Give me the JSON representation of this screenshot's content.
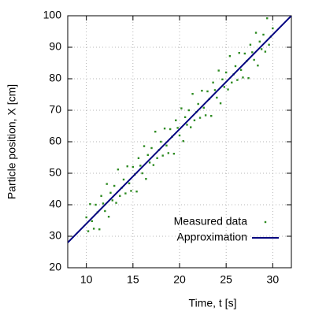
{
  "chart_data": {
    "type": "scatter",
    "xlabel": "Time, t [s]",
    "ylabel": "Particle position, X [cm]",
    "xlim": [
      8,
      32
    ],
    "ylim": [
      20,
      100
    ],
    "xticks": [
      10,
      15,
      20,
      25,
      30
    ],
    "yticks": [
      20,
      30,
      40,
      50,
      60,
      70,
      80,
      90,
      100
    ],
    "grid": true,
    "legend": "bottom-right",
    "series": [
      {
        "name": "Measured data",
        "type": "scatter",
        "color": "#2e8b22",
        "x": [
          10.0,
          10.2,
          10.4,
          10.6,
          10.8,
          11.0,
          11.2,
          11.4,
          11.6,
          11.8,
          12.0,
          12.2,
          12.4,
          12.6,
          12.8,
          13.0,
          13.2,
          13.4,
          13.6,
          13.8,
          14.0,
          14.2,
          14.4,
          14.6,
          14.8,
          15.0,
          15.2,
          15.4,
          15.6,
          15.8,
          16.0,
          16.2,
          16.4,
          16.6,
          16.8,
          17.0,
          17.2,
          17.4,
          17.6,
          17.8,
          18.0,
          18.2,
          18.4,
          18.6,
          18.8,
          19.0,
          19.2,
          19.4,
          19.6,
          19.8,
          20.0,
          20.2,
          20.4,
          20.6,
          20.8,
          21.0,
          21.2,
          21.4,
          21.6,
          21.8,
          22.0,
          22.2,
          22.4,
          22.6,
          22.8,
          23.0,
          23.2,
          23.4,
          23.6,
          23.8,
          24.0,
          24.2,
          24.4,
          24.6,
          24.8,
          25.0,
          25.2,
          25.4,
          25.6,
          25.8,
          26.0,
          26.2,
          26.4,
          26.6,
          26.8,
          27.0,
          27.2,
          27.4,
          27.6,
          27.8,
          28.0,
          28.2,
          28.4,
          28.6,
          28.8,
          29.0,
          29.2,
          29.4,
          29.6,
          29.8,
          30.0
        ],
        "values": [
          36,
          31.6,
          40.2,
          34.8,
          32.4,
          40,
          37.6,
          32.2,
          42.8,
          40.4,
          38,
          46.6,
          36.2,
          43.8,
          41.4,
          46,
          40.6,
          51.2,
          42.8,
          45.4,
          48,
          43.6,
          52.2,
          46.8,
          44.4,
          52,
          49.6,
          44.2,
          54.8,
          52.4,
          50,
          58.6,
          48.2,
          55.8,
          53.4,
          58,
          52.6,
          63.2,
          54.8,
          57.4,
          60,
          55.6,
          64.2,
          58.8,
          56.4,
          64,
          61.6,
          56.2,
          66.8,
          64.4,
          62,
          70.6,
          60.2,
          67.8,
          65.4,
          70,
          64.6,
          75.2,
          66.8,
          69.4,
          72,
          67.6,
          76.2,
          70.8,
          68.4,
          76,
          73.6,
          68.2,
          78.8,
          76.4,
          74,
          82.6,
          72.2,
          79.8,
          77.4,
          82,
          76.6,
          87.2,
          78.8,
          81.4,
          84,
          79.6,
          88.2,
          82.8,
          80.4,
          88,
          85.6,
          80.2,
          90.8,
          88.4,
          86,
          94.6,
          84.2,
          91.8,
          89.4,
          94,
          88.6,
          99.2,
          90.8,
          93.4,
          96
        ]
      },
      {
        "name": "Approximation",
        "type": "line",
        "color": "#00007f",
        "x": [
          8,
          32
        ],
        "values": [
          28,
          100
        ]
      }
    ]
  }
}
